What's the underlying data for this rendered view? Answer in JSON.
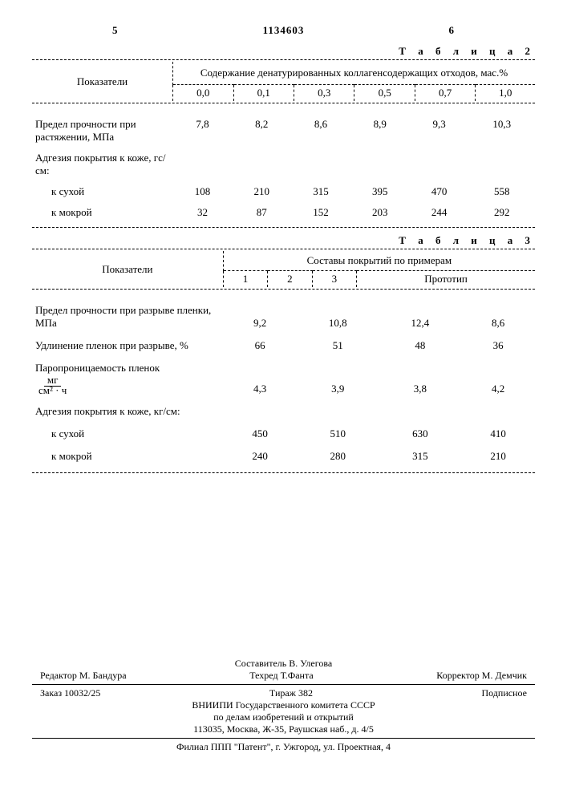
{
  "header": {
    "left_num": "5",
    "doc_number": "1134603",
    "right_num": "6"
  },
  "table2": {
    "label": "Т а б л и ц а  2",
    "col_header": "Показатели",
    "spanning_header": "Содержание денатурированных коллагенсодержащих отходов, мас.%",
    "cols": [
      "0,0",
      "0,1",
      "0,3",
      "0,5",
      "0,7",
      "1,0"
    ],
    "rows": [
      {
        "label": "Предел прочности при растяжении, МПа",
        "vals": [
          "7,8",
          "8,2",
          "8,6",
          "8,9",
          "9,3",
          "10,3"
        ]
      },
      {
        "label": "Адгезия покрытия к коже, гс/см:",
        "vals": [
          "",
          "",
          "",
          "",
          "",
          ""
        ]
      },
      {
        "label": "к сухой",
        "indent": true,
        "vals": [
          "108",
          "210",
          "315",
          "395",
          "470",
          "558"
        ]
      },
      {
        "label": "к мокрой",
        "indent": true,
        "vals": [
          "32",
          "87",
          "152",
          "203",
          "244",
          "292"
        ]
      }
    ]
  },
  "table3": {
    "label": "Т а б л и ц а  3",
    "col_header": "Показатели",
    "spanning_header": "Составы покрытий по примерам",
    "cols": [
      "1",
      "2",
      "3",
      "Прототип"
    ],
    "formula_label": "Паропроницаемость пленок",
    "frac_num": "мг",
    "frac_den": "см² · ч",
    "rows": [
      {
        "label": "Предел прочности при разрыве пленки, МПа",
        "vals": [
          "9,2",
          "10,8",
          "12,4",
          "8,6"
        ]
      },
      {
        "label": "Удлинение пленок при разрыве, %",
        "vals": [
          "66",
          "51",
          "48",
          "36"
        ]
      },
      {
        "label": "__FORMULA__",
        "vals": [
          "4,3",
          "3,9",
          "3,8",
          "4,2"
        ]
      },
      {
        "label": "Адгезия покрытия к коже, кг/см:",
        "vals": [
          "",
          "",
          "",
          ""
        ]
      },
      {
        "label": "к сухой",
        "indent": true,
        "vals": [
          "450",
          "510",
          "630",
          "410"
        ]
      },
      {
        "label": "к мокрой",
        "indent": true,
        "vals": [
          "240",
          "280",
          "315",
          "210"
        ]
      }
    ]
  },
  "footer": {
    "compiler": "Составитель В. Улегова",
    "editor": "Редактор М. Бандура",
    "techred": "Техред Т.Фанта",
    "corrector": "Корректор М. Демчик",
    "order": "Заказ 10032/25",
    "tirazh": "Тираж 382",
    "podpis": "Подписное",
    "org1": "ВНИИПИ Государственного комитета СССР",
    "org2": "по делам изобретений и открытий",
    "addr1": "113035, Москва, Ж-35, Раушская наб., д. 4/5",
    "branch": "Филиал ППП \"Патент\", г. Ужгород, ул. Проектная, 4"
  }
}
